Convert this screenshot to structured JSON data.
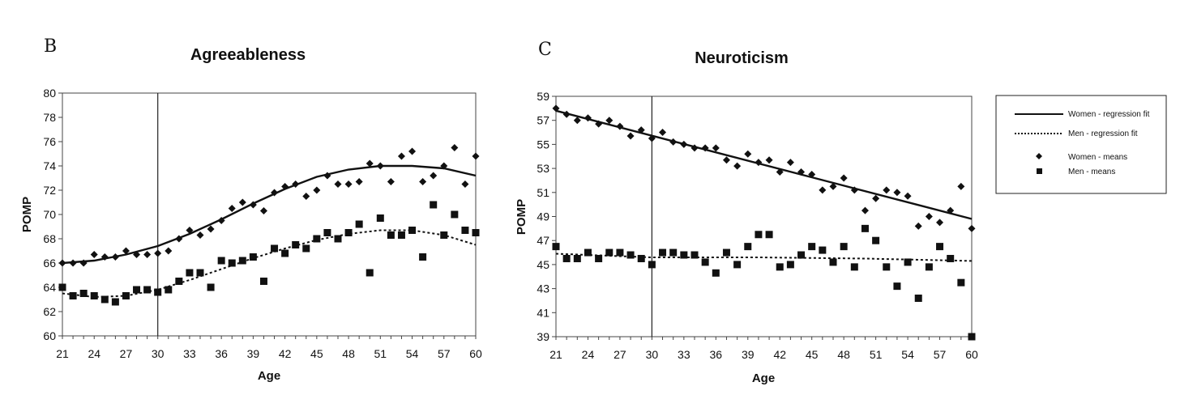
{
  "chart_data": [
    {
      "type": "scatter",
      "panel_letter": "B",
      "title": "Agreeableness",
      "xlabel": "Age",
      "ylabel": "POMP",
      "xlim": [
        21,
        60
      ],
      "ylim": [
        60,
        80
      ],
      "x_ticks": [
        21,
        24,
        27,
        30,
        33,
        36,
        39,
        42,
        45,
        48,
        51,
        54,
        57,
        60
      ],
      "y_ticks": [
        60,
        62,
        64,
        66,
        68,
        70,
        72,
        74,
        76,
        78,
        80
      ],
      "reference_line_x": 30,
      "series": [
        {
          "name": "Women - means",
          "marker": "diamond",
          "x": [
            21,
            22,
            23,
            24,
            25,
            26,
            27,
            28,
            29,
            30,
            31,
            32,
            33,
            34,
            35,
            36,
            37,
            38,
            39,
            40,
            41,
            42,
            43,
            44,
            45,
            46,
            47,
            48,
            49,
            50,
            51,
            52,
            53,
            54,
            55,
            56,
            57,
            58,
            59,
            60
          ],
          "values": [
            66.0,
            66.0,
            66.0,
            66.7,
            66.5,
            66.5,
            67.0,
            66.7,
            66.7,
            66.8,
            67.0,
            68.0,
            68.7,
            68.3,
            68.8,
            69.5,
            70.5,
            71.0,
            70.8,
            70.3,
            71.8,
            72.3,
            72.5,
            71.5,
            72.0,
            73.2,
            72.5,
            72.5,
            72.7,
            74.2,
            74.0,
            72.7,
            74.8,
            75.2,
            72.7,
            73.2,
            74.0,
            75.5,
            72.5,
            74.8
          ]
        },
        {
          "name": "Men - means",
          "marker": "square",
          "x": [
            21,
            22,
            23,
            24,
            25,
            26,
            27,
            28,
            29,
            30,
            31,
            32,
            33,
            34,
            35,
            36,
            37,
            38,
            39,
            40,
            41,
            42,
            43,
            44,
            45,
            46,
            47,
            48,
            49,
            50,
            51,
            52,
            53,
            54,
            55,
            56,
            57,
            58,
            59,
            60
          ],
          "values": [
            64.0,
            63.3,
            63.5,
            63.3,
            63.0,
            62.8,
            63.3,
            63.8,
            63.8,
            63.6,
            63.8,
            64.5,
            65.2,
            65.2,
            64.0,
            66.2,
            66.0,
            66.2,
            66.5,
            64.5,
            67.2,
            66.8,
            67.5,
            67.2,
            68.0,
            68.5,
            68.0,
            68.5,
            69.2,
            65.2,
            69.7,
            68.3,
            68.3,
            68.7,
            66.5,
            70.8,
            68.3,
            70.0,
            68.7,
            68.5
          ]
        },
        {
          "name": "Women - regression fit",
          "style": "solid",
          "x": [
            21,
            24,
            27,
            30,
            33,
            36,
            39,
            42,
            45,
            48,
            51,
            54,
            57,
            60
          ],
          "values": [
            66.0,
            66.2,
            66.7,
            67.4,
            68.4,
            69.6,
            70.9,
            72.1,
            73.1,
            73.7,
            74.0,
            74.0,
            73.8,
            73.2
          ]
        },
        {
          "name": "Men - regression fit",
          "style": "dotted",
          "x": [
            21,
            24,
            27,
            30,
            33,
            36,
            39,
            42,
            45,
            48,
            51,
            54,
            57,
            60
          ],
          "values": [
            63.5,
            63.2,
            63.3,
            63.8,
            64.6,
            65.5,
            66.4,
            67.2,
            67.9,
            68.4,
            68.7,
            68.7,
            68.3,
            67.5
          ]
        }
      ]
    },
    {
      "type": "scatter",
      "panel_letter": "C",
      "title": "Neuroticism",
      "xlabel": "Age",
      "ylabel": "POMP",
      "xlim": [
        21,
        60
      ],
      "ylim": [
        39,
        59
      ],
      "x_ticks": [
        21,
        24,
        27,
        30,
        33,
        36,
        39,
        42,
        45,
        48,
        51,
        54,
        57,
        60
      ],
      "y_ticks": [
        39,
        41,
        43,
        45,
        47,
        49,
        51,
        53,
        55,
        57,
        59
      ],
      "reference_line_x": 30,
      "series": [
        {
          "name": "Women - means",
          "marker": "diamond",
          "x": [
            21,
            22,
            23,
            24,
            25,
            26,
            27,
            28,
            29,
            30,
            31,
            32,
            33,
            34,
            35,
            36,
            37,
            38,
            39,
            40,
            41,
            42,
            43,
            44,
            45,
            46,
            47,
            48,
            49,
            50,
            51,
            52,
            53,
            54,
            55,
            56,
            57,
            58,
            59,
            60
          ],
          "values": [
            58.0,
            57.5,
            57.0,
            57.2,
            56.7,
            57.0,
            56.5,
            55.7,
            56.2,
            55.5,
            56.0,
            55.2,
            55.0,
            54.7,
            54.7,
            54.7,
            53.7,
            53.2,
            54.2,
            53.5,
            53.7,
            52.7,
            53.5,
            52.7,
            52.5,
            51.2,
            51.5,
            52.2,
            51.2,
            49.5,
            50.5,
            51.2,
            51.0,
            50.7,
            48.2,
            49.0,
            48.5,
            49.5,
            51.5,
            48.0
          ]
        },
        {
          "name": "Men - means",
          "marker": "square",
          "x": [
            21,
            22,
            23,
            24,
            25,
            26,
            27,
            28,
            29,
            30,
            31,
            32,
            33,
            34,
            35,
            36,
            37,
            38,
            39,
            40,
            41,
            42,
            43,
            44,
            45,
            46,
            47,
            48,
            49,
            50,
            51,
            52,
            53,
            54,
            55,
            56,
            57,
            58,
            59,
            60
          ],
          "values": [
            46.5,
            45.5,
            45.5,
            46.0,
            45.5,
            46.0,
            46.0,
            45.8,
            45.5,
            45.0,
            46.0,
            46.0,
            45.8,
            45.8,
            45.2,
            44.3,
            46.0,
            45.0,
            46.5,
            47.5,
            47.5,
            44.8,
            45.0,
            45.8,
            46.5,
            46.2,
            45.2,
            46.5,
            44.8,
            48.0,
            47.0,
            44.8,
            43.2,
            45.2,
            42.2,
            44.8,
            46.5,
            45.5,
            43.5,
            39.0
          ]
        },
        {
          "name": "Women - regression fit",
          "style": "solid",
          "x": [
            21,
            60
          ],
          "values": [
            57.8,
            48.8
          ]
        },
        {
          "name": "Men - regression fit",
          "style": "dotted",
          "x": [
            21,
            30,
            40,
            50,
            60
          ],
          "values": [
            45.9,
            45.6,
            45.6,
            45.5,
            45.3
          ]
        }
      ]
    }
  ],
  "legend": {
    "items": [
      {
        "label": "Women - regression fit",
        "kind": "solid"
      },
      {
        "label": "Men - regression fit",
        "kind": "dotted"
      },
      {
        "label": "Women - means",
        "kind": "diamond"
      },
      {
        "label": "Men - means",
        "kind": "square"
      }
    ]
  }
}
